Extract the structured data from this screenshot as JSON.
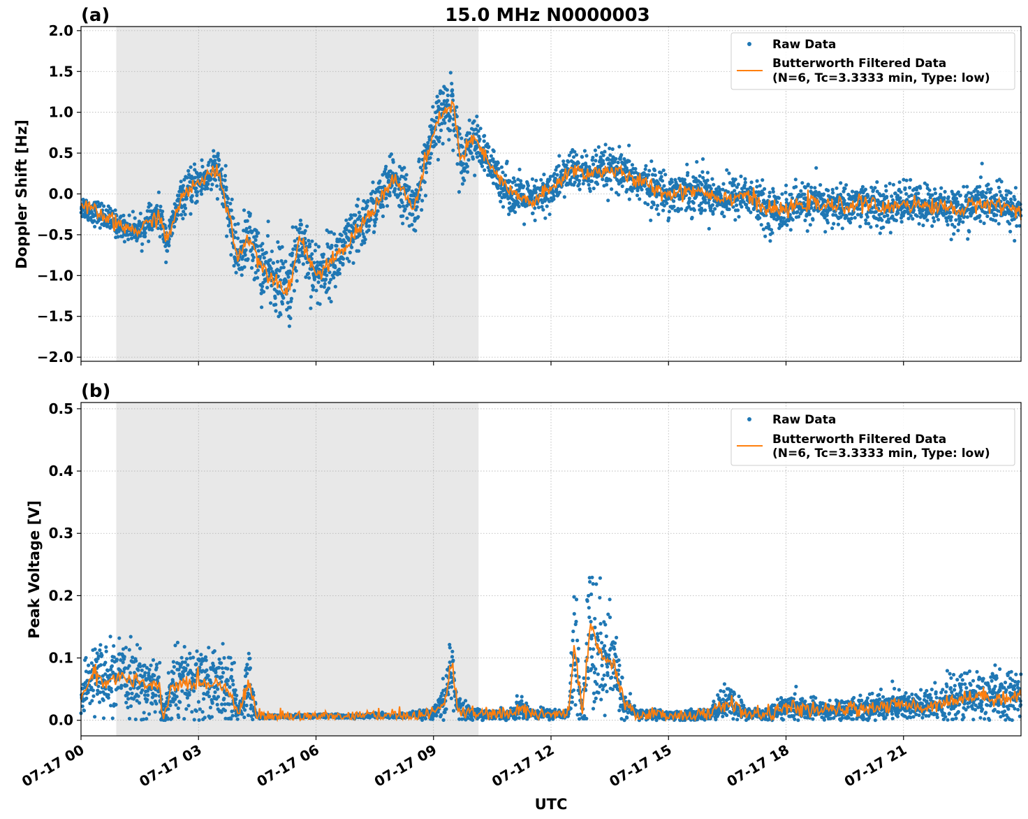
{
  "figure": {
    "title": "15.0 MHz N0000003",
    "xlabel": "UTC",
    "x_tick_labels": [
      "07-17 00",
      "07-17 03",
      "07-17 06",
      "07-17 09",
      "07-17 12",
      "07-17 15",
      "07-17 18",
      "07-17 21"
    ],
    "night_shading_hours": [
      0.9,
      10.15
    ],
    "colors": {
      "raw": "#1f77b4",
      "filtered": "#ff7f0e",
      "shading": "#e8e8e8"
    },
    "legend": {
      "raw_label": "Raw Data",
      "filtered_label_line1": "Butterworth Filtered Data",
      "filtered_label_line2": "(N=6, Tc=3.3333 min, Type: low)"
    }
  },
  "chart_data": [
    {
      "type": "scatter",
      "panel_label": "(a)",
      "title": "15.0 MHz N0000003",
      "xlabel": "UTC",
      "ylabel": "Doppler Shift [Hz]",
      "xlim_hours": [
        0,
        24
      ],
      "ylim": [
        -2.05,
        2.05
      ],
      "y_ticks": [
        2.0,
        1.5,
        1.0,
        0.5,
        0.0,
        -0.5,
        -1.0,
        -1.5,
        -2.0
      ],
      "y_tick_labels": [
        "2.0",
        "1.5",
        "1.0",
        "0.5",
        "0.0",
        "−0.5",
        "−1.0",
        "−1.5",
        "−2.0"
      ],
      "grid": true,
      "legend_position": "top-right",
      "series": [
        {
          "name": "Raw Data",
          "x_hours": [
            0,
            0.5,
            1,
            1.5,
            2,
            2.2,
            2.5,
            3,
            3.5,
            3.8,
            4,
            4.3,
            4.6,
            5,
            5.3,
            5.6,
            6,
            6.5,
            7,
            7.5,
            8,
            8.5,
            8.8,
            9.2,
            9.5,
            9.7,
            10,
            10.5,
            11,
            11.5,
            12,
            12.5,
            13,
            13.5,
            14,
            14.5,
            15,
            15.5,
            15.8,
            16,
            16.5,
            17,
            17.5,
            18,
            18.5,
            19,
            19.5,
            20,
            20.5,
            21,
            21.5,
            22,
            22.5,
            23,
            23.5,
            24
          ],
          "center": [
            -0.15,
            -0.25,
            -0.4,
            -0.45,
            -0.25,
            -0.6,
            -0.1,
            0.15,
            0.3,
            -0.3,
            -0.8,
            -0.5,
            -0.9,
            -1.05,
            -1.2,
            -0.5,
            -1.0,
            -0.8,
            -0.5,
            -0.15,
            0.2,
            -0.2,
            0.4,
            1.0,
            1.1,
            0.4,
            0.7,
            0.3,
            0.0,
            -0.1,
            0.05,
            0.3,
            0.25,
            0.3,
            0.2,
            0.1,
            0.0,
            0.05,
            0.05,
            0.0,
            -0.05,
            0.0,
            -0.2,
            -0.2,
            -0.1,
            -0.15,
            -0.15,
            -0.1,
            -0.2,
            -0.1,
            -0.15,
            -0.15,
            -0.2,
            -0.1,
            -0.15,
            -0.2
          ],
          "spread": [
            0.15,
            0.15,
            0.15,
            0.15,
            0.2,
            0.2,
            0.2,
            0.25,
            0.25,
            0.3,
            0.35,
            0.35,
            0.4,
            0.4,
            0.45,
            0.4,
            0.4,
            0.35,
            0.35,
            0.3,
            0.3,
            0.3,
            0.35,
            0.35,
            0.4,
            0.3,
            0.3,
            0.25,
            0.25,
            0.25,
            0.25,
            0.25,
            0.25,
            0.25,
            0.25,
            0.25,
            0.25,
            0.25,
            0.3,
            0.25,
            0.25,
            0.25,
            0.25,
            0.25,
            0.25,
            0.25,
            0.25,
            0.25,
            0.25,
            0.25,
            0.25,
            0.25,
            0.25,
            0.25,
            0.25,
            0.25
          ]
        },
        {
          "name": "Butterworth Filtered Data\n(N=6, Tc=3.3333 min, Type: low)",
          "x_hours": [
            0,
            0.5,
            1,
            1.5,
            2,
            2.2,
            2.5,
            3,
            3.5,
            3.8,
            4,
            4.3,
            4.6,
            5,
            5.3,
            5.6,
            6,
            6.5,
            7,
            7.5,
            8,
            8.5,
            8.8,
            9.2,
            9.5,
            9.7,
            10,
            10.5,
            11,
            11.5,
            12,
            12.5,
            13,
            13.5,
            14,
            14.5,
            15,
            15.5,
            15.8,
            16,
            16.5,
            17,
            17.5,
            18,
            18.5,
            19,
            19.5,
            20,
            20.5,
            21,
            21.5,
            22,
            22.5,
            23,
            23.5,
            24
          ],
          "y": [
            -0.15,
            -0.25,
            -0.4,
            -0.45,
            -0.25,
            -0.6,
            -0.1,
            0.15,
            0.3,
            -0.3,
            -0.8,
            -0.5,
            -0.9,
            -1.05,
            -1.2,
            -0.5,
            -1.0,
            -0.8,
            -0.5,
            -0.15,
            0.2,
            -0.2,
            0.4,
            1.0,
            1.1,
            0.4,
            0.7,
            0.3,
            0.0,
            -0.1,
            0.05,
            0.3,
            0.25,
            0.3,
            0.2,
            0.1,
            0.0,
            0.05,
            0.05,
            0.0,
            -0.05,
            0.0,
            -0.2,
            -0.2,
            -0.1,
            -0.15,
            -0.15,
            -0.1,
            -0.2,
            -0.1,
            -0.15,
            -0.15,
            -0.2,
            -0.1,
            -0.15,
            -0.2
          ]
        }
      ]
    },
    {
      "type": "scatter",
      "panel_label": "(b)",
      "xlabel": "UTC",
      "ylabel": "Peak Voltage [V]",
      "xlim_hours": [
        0,
        24
      ],
      "ylim": [
        -0.025,
        0.51
      ],
      "y_ticks": [
        0.5,
        0.4,
        0.3,
        0.2,
        0.1,
        0.0
      ],
      "y_tick_labels": [
        "0.5",
        "0.4",
        "0.3",
        "0.2",
        "0.1",
        "0.0"
      ],
      "grid": true,
      "legend_position": "top-right",
      "series": [
        {
          "name": "Raw Data",
          "x_hours": [
            0,
            0.3,
            0.6,
            1,
            1.5,
            2,
            2.1,
            2.3,
            2.6,
            3,
            3.5,
            3.9,
            4.0,
            4.3,
            4.5,
            5,
            6,
            7,
            7.5,
            8,
            9,
            9.3,
            9.45,
            9.6,
            10,
            11,
            11.2,
            11.6,
            12,
            12.45,
            12.6,
            12.8,
            13.0,
            13.3,
            13.6,
            13.9,
            14.2,
            15,
            16,
            16.5,
            17,
            17.5,
            18,
            19,
            20,
            21,
            21.5,
            22,
            22.5,
            23,
            23.5,
            24
          ],
          "center": [
            0.03,
            0.08,
            0.06,
            0.07,
            0.06,
            0.05,
            0.0,
            0.05,
            0.06,
            0.06,
            0.06,
            0.04,
            0.01,
            0.06,
            0.006,
            0.006,
            0.007,
            0.006,
            0.008,
            0.006,
            0.01,
            0.03,
            0.1,
            0.02,
            0.01,
            0.01,
            0.02,
            0.01,
            0.01,
            0.01,
            0.12,
            0.01,
            0.15,
            0.1,
            0.09,
            0.02,
            0.01,
            0.008,
            0.008,
            0.03,
            0.01,
            0.01,
            0.02,
            0.015,
            0.02,
            0.025,
            0.02,
            0.03,
            0.035,
            0.04,
            0.035,
            0.04
          ],
          "spread": [
            0.03,
            0.05,
            0.05,
            0.05,
            0.05,
            0.05,
            0.01,
            0.06,
            0.06,
            0.06,
            0.06,
            0.05,
            0.01,
            0.06,
            0.003,
            0.003,
            0.003,
            0.003,
            0.004,
            0.003,
            0.008,
            0.03,
            0.09,
            0.02,
            0.008,
            0.008,
            0.02,
            0.008,
            0.008,
            0.008,
            0.1,
            0.01,
            0.15,
            0.09,
            0.07,
            0.02,
            0.008,
            0.008,
            0.008,
            0.03,
            0.01,
            0.01,
            0.02,
            0.015,
            0.02,
            0.025,
            0.025,
            0.03,
            0.04,
            0.04,
            0.04,
            0.04
          ]
        },
        {
          "name": "Butterworth Filtered Data\n(N=6, Tc=3.3333 min, Type: low)",
          "x_hours": [
            0,
            0.3,
            0.6,
            1,
            1.5,
            2,
            2.1,
            2.3,
            2.6,
            3,
            3.5,
            3.9,
            4.0,
            4.3,
            4.5,
            5,
            6,
            7,
            7.5,
            8,
            9,
            9.3,
            9.45,
            9.6,
            10,
            11,
            11.2,
            11.6,
            12,
            12.45,
            12.6,
            12.8,
            13.0,
            13.3,
            13.6,
            13.9,
            14.2,
            15,
            16,
            16.5,
            17,
            17.5,
            18,
            19,
            20,
            21,
            21.5,
            22,
            22.5,
            23,
            23.5,
            24
          ],
          "y": [
            0.03,
            0.08,
            0.06,
            0.07,
            0.06,
            0.05,
            0.0,
            0.05,
            0.06,
            0.06,
            0.06,
            0.04,
            0.01,
            0.06,
            0.006,
            0.006,
            0.007,
            0.006,
            0.008,
            0.006,
            0.01,
            0.03,
            0.1,
            0.02,
            0.01,
            0.01,
            0.02,
            0.01,
            0.01,
            0.01,
            0.12,
            0.01,
            0.15,
            0.1,
            0.09,
            0.02,
            0.01,
            0.008,
            0.008,
            0.03,
            0.01,
            0.01,
            0.02,
            0.015,
            0.02,
            0.025,
            0.02,
            0.03,
            0.035,
            0.04,
            0.035,
            0.04
          ]
        }
      ]
    }
  ]
}
